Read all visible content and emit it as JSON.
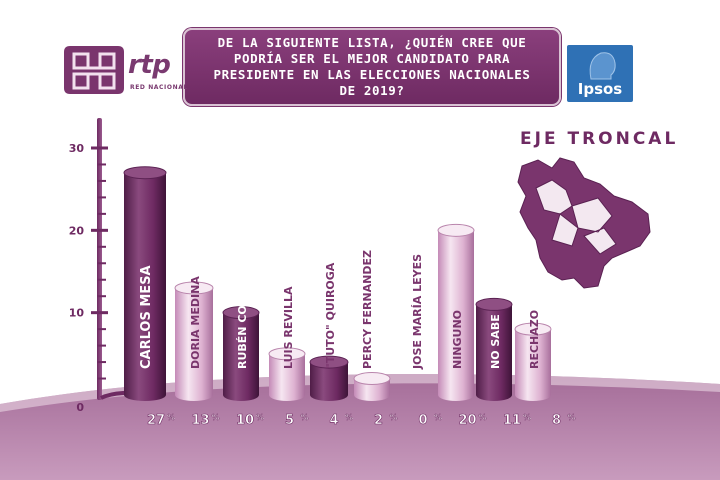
{
  "header": {
    "question": "DE LA SIGUIENTE LISTA, ¿QUIÉN CREE QUE PODRÍA SER EL MEJOR CANDIDATO PARA PRESIDENTE EN LAS ELECCIONES NACIONALES DE 2019?"
  },
  "brand": {
    "channel": "rtp",
    "channel_sub": "RED NACIONAL",
    "pollster": "Ipsos"
  },
  "map": {
    "label": "EJE TRONCAL"
  },
  "colors": {
    "accent": "#7a356d",
    "bar_light": "#d9a6c9",
    "bar_dark": "#6e2a62",
    "pollster_blue": "#2f71b5"
  },
  "chart_data": {
    "type": "bar",
    "title": "DE LA SIGUIENTE LISTA, ¿QUIÉN CREE QUE PODRÍA SER EL MEJOR CANDIDATO PARA PRESIDENTE EN LAS ELECCIONES NACIONALES DE 2019?",
    "xlabel": "",
    "ylabel": "",
    "ylim": [
      0,
      30
    ],
    "yticks": [
      "0",
      "10",
      "20",
      "30"
    ],
    "categories": [
      "CARLOS MESA",
      "DORIA MEDINA",
      "RUBÉN COSTAS",
      "LUIS REVILLA",
      "\"TUTO\" QUIROGA",
      "PERCY FERNANDEZ",
      "JOSE MARÍA LEYES",
      "NINGUNO",
      "NO SABE",
      "RECHAZO"
    ],
    "values": [
      27,
      13,
      10,
      5,
      4,
      2,
      0,
      20,
      11,
      8
    ],
    "value_labels": [
      "27",
      "13",
      "10",
      "5",
      "4",
      "2",
      "0",
      "20",
      "11",
      "8"
    ],
    "unit": "%",
    "grid": false,
    "legend": "none"
  }
}
